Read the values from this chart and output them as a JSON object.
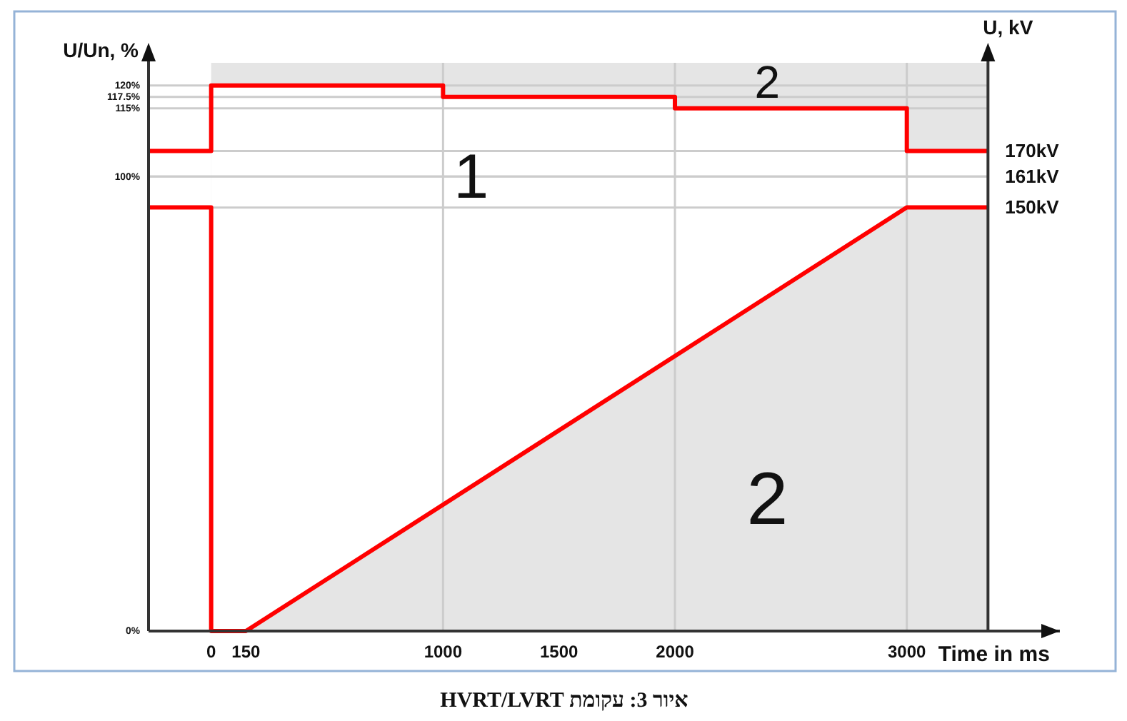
{
  "chart_data": {
    "type": "line",
    "title": "איור 3: עקומת HVRT/LVRT",
    "xlabel": "Time in ms",
    "ylabel": "U/Un, %",
    "y2label": "U, kV",
    "xlim": [
      -270,
      3660
    ],
    "xticks": [
      0,
      150,
      1000,
      1500,
      2000,
      3000
    ],
    "ylim": [
      0,
      125
    ],
    "yticks": [
      {
        "value": 0,
        "label": "0%"
      },
      {
        "value": 100,
        "label": "100%"
      },
      {
        "value": 115,
        "label": "115%"
      },
      {
        "value": 117.5,
        "label": "117.5%"
      },
      {
        "value": 120,
        "label": "120%"
      }
    ],
    "y2lim": [
      0,
      201.25
    ],
    "y2ticks": [
      {
        "value": 150,
        "label": "150kV"
      },
      {
        "value": 161,
        "label": "161kV"
      },
      {
        "value": 170,
        "label": "170kV"
      }
    ],
    "grid": "y",
    "bands": [
      {
        "axis": "x",
        "from": 0,
        "to": 3350,
        "color": "#e5e5e5"
      }
    ],
    "ref_lines": [
      {
        "axis": "x",
        "value": 1000,
        "color": "#cccccc"
      },
      {
        "axis": "x",
        "value": 2000,
        "color": "#cccccc"
      },
      {
        "axis": "x",
        "value": 3000,
        "color": "#cccccc"
      }
    ],
    "series": [
      {
        "type": "area",
        "color": "#ffffff",
        "x": [
          0,
          1000,
          1000,
          2000,
          2000,
          3000,
          3000,
          3350
        ],
        "values": [
          120,
          120,
          117.5,
          117.5,
          115,
          115,
          105.6,
          105.6
        ]
      },
      {
        "type": "area",
        "color": "#e5e5e5",
        "x": [
          150,
          3000,
          3350
        ],
        "values": [
          0,
          93.2,
          93.2
        ]
      },
      {
        "type": "line",
        "color": "#ff0000",
        "x": [
          -270,
          0,
          0,
          1000,
          1000,
          2000,
          2000,
          3000,
          3000,
          3350
        ],
        "values": [
          105.6,
          105.6,
          120,
          120,
          117.5,
          117.5,
          115,
          115,
          105.6,
          105.6
        ]
      },
      {
        "type": "line",
        "color": "#ff0000",
        "x": [
          -270,
          0,
          0,
          150,
          3000,
          3350
        ],
        "values": [
          93.2,
          93.2,
          0,
          0,
          93.2,
          93.2
        ]
      }
    ],
    "annotations": [
      "1",
      "2",
      "2"
    ]
  }
}
